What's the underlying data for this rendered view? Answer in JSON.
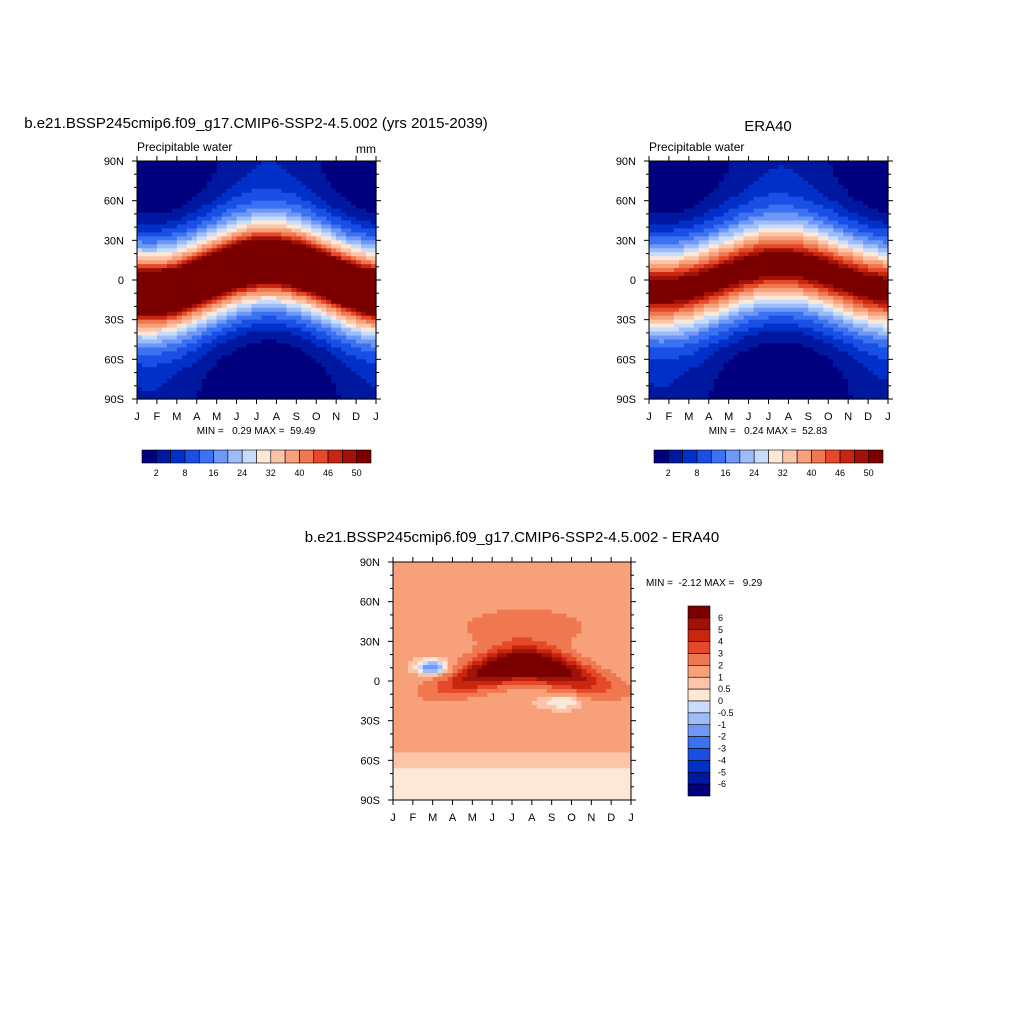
{
  "chart_data": [
    {
      "type": "heatmap",
      "title": "b.e21.BSSP245cmip6.f09_g17.CMIP6-SSP2-4.5.002 (yrs 2015-2039)",
      "subtitle_left": "Precipitable water",
      "subtitle_right": "mm",
      "x_ticks": [
        "J",
        "F",
        "M",
        "A",
        "M",
        "J",
        "J",
        "A",
        "S",
        "O",
        "N",
        "D",
        "J"
      ],
      "y_ticks": [
        "90N",
        "60N",
        "30N",
        "0",
        "30S",
        "60S",
        "90S"
      ],
      "ylim": [
        -90,
        90
      ],
      "stats_text": "MIN =   0.29 MAX =  59.49",
      "colorbar": {
        "orientation": "horizontal",
        "levels": [
          2,
          5,
          8,
          12,
          16,
          20,
          24,
          28,
          32,
          36,
          40,
          43,
          46,
          48,
          50
        ],
        "labels": [
          "2",
          "8",
          "16",
          "24",
          "32",
          "40",
          "46",
          "50"
        ],
        "colors": [
          "#00007f",
          "#0018a0",
          "#0030c8",
          "#1a4fe6",
          "#3a72f2",
          "#6f98f6",
          "#9dbdf8",
          "#c8dcfc",
          "#fde8d8",
          "#fcc5aa",
          "#f7a07a",
          "#f07850",
          "#e5492a",
          "#c8260f",
          "#a01208",
          "#7a0000"
        ]
      },
      "model": {
        "wet_max": 59.5,
        "wet_min_polar": 0.29,
        "belt_shift": 12,
        "belt_amp": 1.0
      }
    },
    {
      "type": "heatmap",
      "title": "ERA40",
      "subtitle_left": "Precipitable water",
      "subtitle_right": "",
      "x_ticks": [
        "J",
        "F",
        "M",
        "A",
        "M",
        "J",
        "J",
        "A",
        "S",
        "O",
        "N",
        "D",
        "J"
      ],
      "y_ticks": [
        "90N",
        "60N",
        "30N",
        "0",
        "30S",
        "60S",
        "90S"
      ],
      "ylim": [
        -90,
        90
      ],
      "stats_text": "MIN =   0.24 MAX =  52.83",
      "colorbar": {
        "orientation": "horizontal",
        "levels": [
          2,
          5,
          8,
          12,
          16,
          20,
          24,
          28,
          32,
          36,
          40,
          43,
          46,
          48,
          50
        ],
        "labels": [
          "2",
          "8",
          "16",
          "24",
          "32",
          "40",
          "46",
          "50"
        ],
        "colors": [
          "#00007f",
          "#0018a0",
          "#0030c8",
          "#1a4fe6",
          "#3a72f2",
          "#6f98f6",
          "#9dbdf8",
          "#c8dcfc",
          "#fde8d8",
          "#fcc5aa",
          "#f7a07a",
          "#f07850",
          "#e5492a",
          "#c8260f",
          "#a01208",
          "#7a0000"
        ]
      },
      "model": {
        "wet_max": 52.8,
        "wet_min_polar": 0.24,
        "belt_shift": 10,
        "belt_amp": 0.9
      }
    },
    {
      "type": "heatmap",
      "title": "b.e21.BSSP245cmip6.f09_g17.CMIP6-SSP2-4.5.002 - ERA40",
      "x_ticks": [
        "J",
        "F",
        "M",
        "A",
        "M",
        "J",
        "J",
        "A",
        "S",
        "O",
        "N",
        "D",
        "J"
      ],
      "y_ticks": [
        "90N",
        "60N",
        "30N",
        "0",
        "30S",
        "60S",
        "90S"
      ],
      "ylim": [
        -90,
        90
      ],
      "stats_text": "MIN =  -2.12 MAX =   9.29",
      "colorbar": {
        "orientation": "vertical",
        "levels": [
          -6,
          -5,
          -4,
          -3,
          -2,
          -1,
          -0.5,
          0,
          0.5,
          1,
          2,
          3,
          4,
          5,
          6
        ],
        "labels": [
          "6",
          "5",
          "4",
          "3",
          "2",
          "1",
          "0.5",
          "0",
          "-0.5",
          "-1",
          "-2",
          "-3",
          "-4",
          "-5",
          "-6"
        ],
        "colors": [
          "#00007f",
          "#0018a0",
          "#0030c8",
          "#1a4fe6",
          "#3a72f2",
          "#6f98f6",
          "#9dbdf8",
          "#c8dcfc",
          "#fde8d8",
          "#fcc5aa",
          "#f7a07a",
          "#f07850",
          "#e5492a",
          "#c8260f",
          "#a01208",
          "#7a0000"
        ]
      }
    }
  ]
}
